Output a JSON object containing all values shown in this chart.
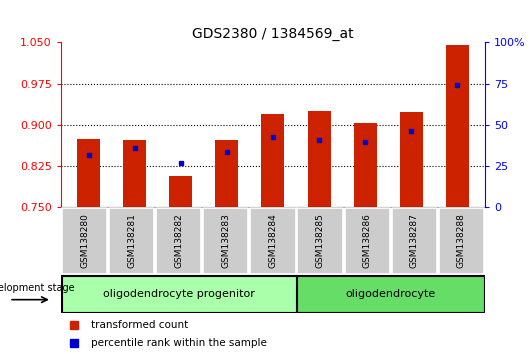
{
  "title": "GDS2380 / 1384569_at",
  "samples": [
    "GSM138280",
    "GSM138281",
    "GSM138282",
    "GSM138283",
    "GSM138284",
    "GSM138285",
    "GSM138286",
    "GSM138287",
    "GSM138288"
  ],
  "red_values": [
    0.875,
    0.873,
    0.807,
    0.872,
    0.919,
    0.926,
    0.904,
    0.924,
    1.045
  ],
  "blue_values": [
    0.845,
    0.858,
    0.831,
    0.851,
    0.878,
    0.873,
    0.868,
    0.888,
    0.972
  ],
  "ylim": [
    0.75,
    1.05
  ],
  "yticks_left": [
    0.75,
    0.825,
    0.9,
    0.975,
    1.05
  ],
  "yticks_right": [
    0,
    25,
    50,
    75,
    100
  ],
  "bar_color": "#cc2200",
  "dot_color": "#0000cc",
  "bar_width": 0.5,
  "groups": [
    {
      "label": "oligodendrocyte progenitor",
      "indices": [
        0,
        4
      ],
      "color": "#aaffaa"
    },
    {
      "label": "oligodendrocyte",
      "indices": [
        5,
        8
      ],
      "color": "#66dd66"
    }
  ],
  "group_label": "development stage",
  "legend_red": "transformed count",
  "legend_blue": "percentile rank within the sample",
  "sample_box_color": "#cccccc"
}
